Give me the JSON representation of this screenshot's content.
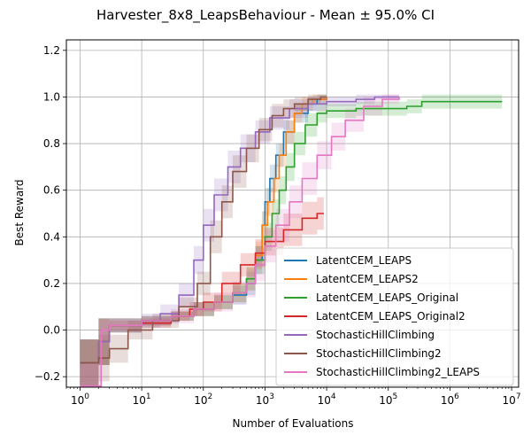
{
  "chart_data": {
    "type": "line",
    "title": "Harvester_8x8_LeapsBehaviour - Mean ± 95.0% CI",
    "xlabel": "Number of Evaluations",
    "ylabel": "Best Reward",
    "xscale": "log",
    "xlim": [
      0.6,
      13000000
    ],
    "ylim": [
      -0.245,
      1.245
    ],
    "grid": true,
    "legend_position": "lower-right",
    "x_ticks": [
      {
        "value": 1,
        "base": "10",
        "exp": "0"
      },
      {
        "value": 10,
        "base": "10",
        "exp": "1"
      },
      {
        "value": 100,
        "base": "10",
        "exp": "2"
      },
      {
        "value": 1000,
        "base": "10",
        "exp": "3"
      },
      {
        "value": 10000,
        "base": "10",
        "exp": "4"
      },
      {
        "value": 100000,
        "base": "10",
        "exp": "5"
      },
      {
        "value": 1000000,
        "base": "10",
        "exp": "6"
      },
      {
        "value": 10000000,
        "base": "10",
        "exp": "7"
      }
    ],
    "y_ticks": [
      {
        "value": -0.2,
        "label": "−0.2"
      },
      {
        "value": 0.0,
        "label": "0.0"
      },
      {
        "value": 0.2,
        "label": "0.2"
      },
      {
        "value": 0.4,
        "label": "0.4"
      },
      {
        "value": 0.6,
        "label": "0.6"
      },
      {
        "value": 0.8,
        "label": "0.8"
      },
      {
        "value": 1.0,
        "label": "1.0"
      },
      {
        "value": 1.2,
        "label": "1.2"
      }
    ],
    "series": [
      {
        "name": "LatentCEM_LEAPS",
        "color": "#1f77b4",
        "points": [
          [
            1,
            -0.14
          ],
          [
            2,
            -0.05
          ],
          [
            3,
            0.02
          ],
          [
            10,
            0.04
          ],
          [
            30,
            0.06
          ],
          [
            70,
            0.09
          ],
          [
            150,
            0.12
          ],
          [
            300,
            0.15
          ],
          [
            500,
            0.2
          ],
          [
            700,
            0.3
          ],
          [
            900,
            0.45
          ],
          [
            1000,
            0.55
          ],
          [
            1200,
            0.65
          ],
          [
            1500,
            0.75
          ],
          [
            2000,
            0.85
          ],
          [
            3000,
            0.93
          ],
          [
            5000,
            0.97
          ],
          [
            7000,
            0.99
          ],
          [
            10000,
            1.0
          ]
        ],
        "ci": [
          0.1,
          0.1,
          0.03,
          0.02,
          0.02,
          0.03,
          0.03,
          0.04,
          0.05,
          0.06,
          0.06,
          0.06,
          0.06,
          0.05,
          0.05,
          0.04,
          0.03,
          0.02,
          0.0
        ]
      },
      {
        "name": "LatentCEM_LEAPS2",
        "color": "#ff7f0e",
        "points": [
          [
            1,
            -0.14
          ],
          [
            2,
            -0.05
          ],
          [
            3,
            0.02
          ],
          [
            10,
            0.04
          ],
          [
            30,
            0.06
          ],
          [
            70,
            0.09
          ],
          [
            150,
            0.12
          ],
          [
            300,
            0.16
          ],
          [
            500,
            0.22
          ],
          [
            700,
            0.32
          ],
          [
            900,
            0.45
          ],
          [
            1100,
            0.55
          ],
          [
            1400,
            0.65
          ],
          [
            1700,
            0.75
          ],
          [
            2200,
            0.85
          ],
          [
            3000,
            0.93
          ],
          [
            4000,
            0.97
          ],
          [
            6000,
            0.99
          ],
          [
            10000,
            1.0
          ]
        ],
        "ci": [
          0.1,
          0.1,
          0.03,
          0.02,
          0.02,
          0.03,
          0.03,
          0.04,
          0.05,
          0.06,
          0.06,
          0.06,
          0.06,
          0.05,
          0.05,
          0.04,
          0.03,
          0.02,
          0.0
        ]
      },
      {
        "name": "LatentCEM_LEAPS_Original",
        "color": "#2ca02c",
        "points": [
          [
            1,
            -0.14
          ],
          [
            2,
            -0.05
          ],
          [
            3,
            0.02
          ],
          [
            10,
            0.04
          ],
          [
            30,
            0.06
          ],
          [
            70,
            0.09
          ],
          [
            150,
            0.12
          ],
          [
            300,
            0.16
          ],
          [
            500,
            0.22
          ],
          [
            700,
            0.3
          ],
          [
            1000,
            0.4
          ],
          [
            1300,
            0.5
          ],
          [
            1700,
            0.6
          ],
          [
            2200,
            0.7
          ],
          [
            3000,
            0.8
          ],
          [
            4500,
            0.88
          ],
          [
            7000,
            0.93
          ],
          [
            10000,
            0.94
          ],
          [
            30000,
            0.95
          ],
          [
            100000,
            0.95
          ],
          [
            200000,
            0.96
          ],
          [
            350000,
            0.98
          ],
          [
            1000000,
            0.98
          ],
          [
            7000000,
            0.98
          ]
        ],
        "ci": [
          0.1,
          0.1,
          0.03,
          0.02,
          0.02,
          0.03,
          0.03,
          0.04,
          0.05,
          0.06,
          0.06,
          0.06,
          0.06,
          0.06,
          0.05,
          0.05,
          0.04,
          0.03,
          0.03,
          0.03,
          0.03,
          0.03,
          0.03,
          0.03
        ]
      },
      {
        "name": "LatentCEM_LEAPS_Original2",
        "color": "#d62728",
        "points": [
          [
            1,
            -0.14
          ],
          [
            2,
            -0.05
          ],
          [
            3,
            0.02
          ],
          [
            10,
            0.03
          ],
          [
            30,
            0.06
          ],
          [
            60,
            0.09
          ],
          [
            100,
            0.12
          ],
          [
            200,
            0.2
          ],
          [
            400,
            0.28
          ],
          [
            700,
            0.33
          ],
          [
            1000,
            0.38
          ],
          [
            2000,
            0.43
          ],
          [
            4000,
            0.48
          ],
          [
            7000,
            0.5
          ],
          [
            9000,
            0.5
          ]
        ],
        "ci": [
          0.1,
          0.1,
          0.02,
          0.02,
          0.02,
          0.03,
          0.04,
          0.05,
          0.05,
          0.06,
          0.06,
          0.07,
          0.07,
          0.07,
          0.07
        ]
      },
      {
        "name": "StochasticHillClimbing",
        "color": "#9467bd",
        "points": [
          [
            1,
            -0.14
          ],
          [
            2,
            -0.05
          ],
          [
            3,
            0.02
          ],
          [
            10,
            0.04
          ],
          [
            20,
            0.07
          ],
          [
            40,
            0.15
          ],
          [
            70,
            0.3
          ],
          [
            100,
            0.45
          ],
          [
            150,
            0.58
          ],
          [
            250,
            0.7
          ],
          [
            400,
            0.78
          ],
          [
            700,
            0.85
          ],
          [
            1200,
            0.91
          ],
          [
            2500,
            0.95
          ],
          [
            5000,
            0.97
          ],
          [
            10000,
            0.98
          ],
          [
            30000,
            0.99
          ],
          [
            60000,
            1.0
          ],
          [
            150000,
            1.0
          ]
        ],
        "ci": [
          0.1,
          0.1,
          0.03,
          0.03,
          0.04,
          0.05,
          0.06,
          0.07,
          0.07,
          0.07,
          0.06,
          0.05,
          0.05,
          0.04,
          0.03,
          0.02,
          0.02,
          0.01,
          0.0
        ]
      },
      {
        "name": "StochasticHillClimbing2",
        "color": "#8c564b",
        "points": [
          [
            1,
            -0.14
          ],
          [
            2,
            -0.12
          ],
          [
            3,
            -0.08
          ],
          [
            6,
            0.0
          ],
          [
            15,
            0.04
          ],
          [
            40,
            0.1
          ],
          [
            80,
            0.2
          ],
          [
            130,
            0.4
          ],
          [
            200,
            0.55
          ],
          [
            300,
            0.68
          ],
          [
            500,
            0.78
          ],
          [
            800,
            0.86
          ],
          [
            1300,
            0.92
          ],
          [
            2000,
            0.95
          ],
          [
            3000,
            0.97
          ],
          [
            5000,
            0.99
          ],
          [
            8000,
            1.0
          ],
          [
            10000,
            1.0
          ]
        ],
        "ci": [
          0.1,
          0.1,
          0.06,
          0.04,
          0.03,
          0.04,
          0.05,
          0.07,
          0.07,
          0.07,
          0.06,
          0.05,
          0.05,
          0.04,
          0.03,
          0.02,
          0.01,
          0.0
        ]
      },
      {
        "name": "StochasticHillClimbing2_LEAPS",
        "color": "#e377c2",
        "points": [
          [
            1,
            -0.24
          ],
          [
            2,
            -0.24
          ],
          [
            2.2,
            0.0
          ],
          [
            3,
            0.02
          ],
          [
            10,
            0.04
          ],
          [
            30,
            0.06
          ],
          [
            70,
            0.09
          ],
          [
            150,
            0.12
          ],
          [
            300,
            0.16
          ],
          [
            500,
            0.2
          ],
          [
            700,
            0.28
          ],
          [
            1000,
            0.36
          ],
          [
            1500,
            0.45
          ],
          [
            2500,
            0.55
          ],
          [
            4000,
            0.65
          ],
          [
            7000,
            0.75
          ],
          [
            12000,
            0.83
          ],
          [
            20000,
            0.9
          ],
          [
            40000,
            0.96
          ],
          [
            80000,
            0.99
          ],
          [
            150000,
            1.0
          ]
        ],
        "ci": [
          0.1,
          0.1,
          0.04,
          0.03,
          0.02,
          0.03,
          0.03,
          0.04,
          0.05,
          0.06,
          0.07,
          0.07,
          0.07,
          0.07,
          0.07,
          0.06,
          0.06,
          0.05,
          0.04,
          0.02,
          0.0
        ]
      }
    ]
  }
}
